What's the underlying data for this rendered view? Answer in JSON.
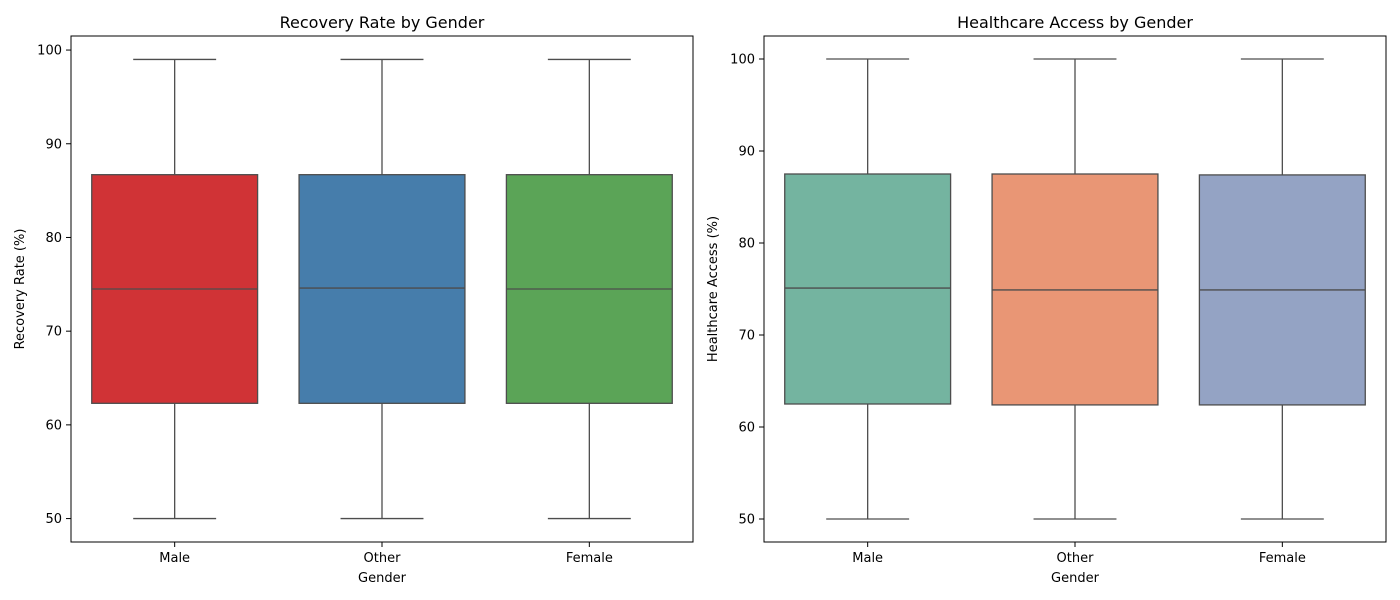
{
  "chart_data": [
    {
      "type": "box",
      "title": "Recovery Rate by Gender",
      "xlabel": "Gender",
      "ylabel": "Recovery Rate (%)",
      "categories": [
        "Male",
        "Other",
        "Female"
      ],
      "ylim": [
        47.5,
        101.5
      ],
      "yticks": [
        50,
        60,
        70,
        80,
        90,
        100
      ],
      "grid": false,
      "colors": [
        "#d03336",
        "#467dab",
        "#5ba457"
      ],
      "boxes": [
        {
          "category": "Male",
          "min": 50,
          "q1": 62.3,
          "median": 74.5,
          "q3": 86.7,
          "max": 99
        },
        {
          "category": "Other",
          "min": 50,
          "q1": 62.3,
          "median": 74.6,
          "q3": 86.7,
          "max": 99
        },
        {
          "category": "Female",
          "min": 50,
          "q1": 62.3,
          "median": 74.5,
          "q3": 86.7,
          "max": 99
        }
      ]
    },
    {
      "type": "box",
      "title": "Healthcare Access by Gender",
      "xlabel": "Gender",
      "ylabel": "Healthcare Access (%)",
      "categories": [
        "Male",
        "Other",
        "Female"
      ],
      "ylim": [
        47.5,
        102.5
      ],
      "yticks": [
        50,
        60,
        70,
        80,
        90,
        100
      ],
      "grid": false,
      "colors": [
        "#74b4a0",
        "#e99675",
        "#94a3c4"
      ],
      "boxes": [
        {
          "category": "Male",
          "min": 50,
          "q1": 62.5,
          "median": 75.1,
          "q3": 87.5,
          "max": 100
        },
        {
          "category": "Other",
          "min": 50,
          "q1": 62.4,
          "median": 74.9,
          "q3": 87.5,
          "max": 100
        },
        {
          "category": "Female",
          "min": 50,
          "q1": 62.4,
          "median": 74.9,
          "q3": 87.4,
          "max": 100
        }
      ]
    }
  ]
}
